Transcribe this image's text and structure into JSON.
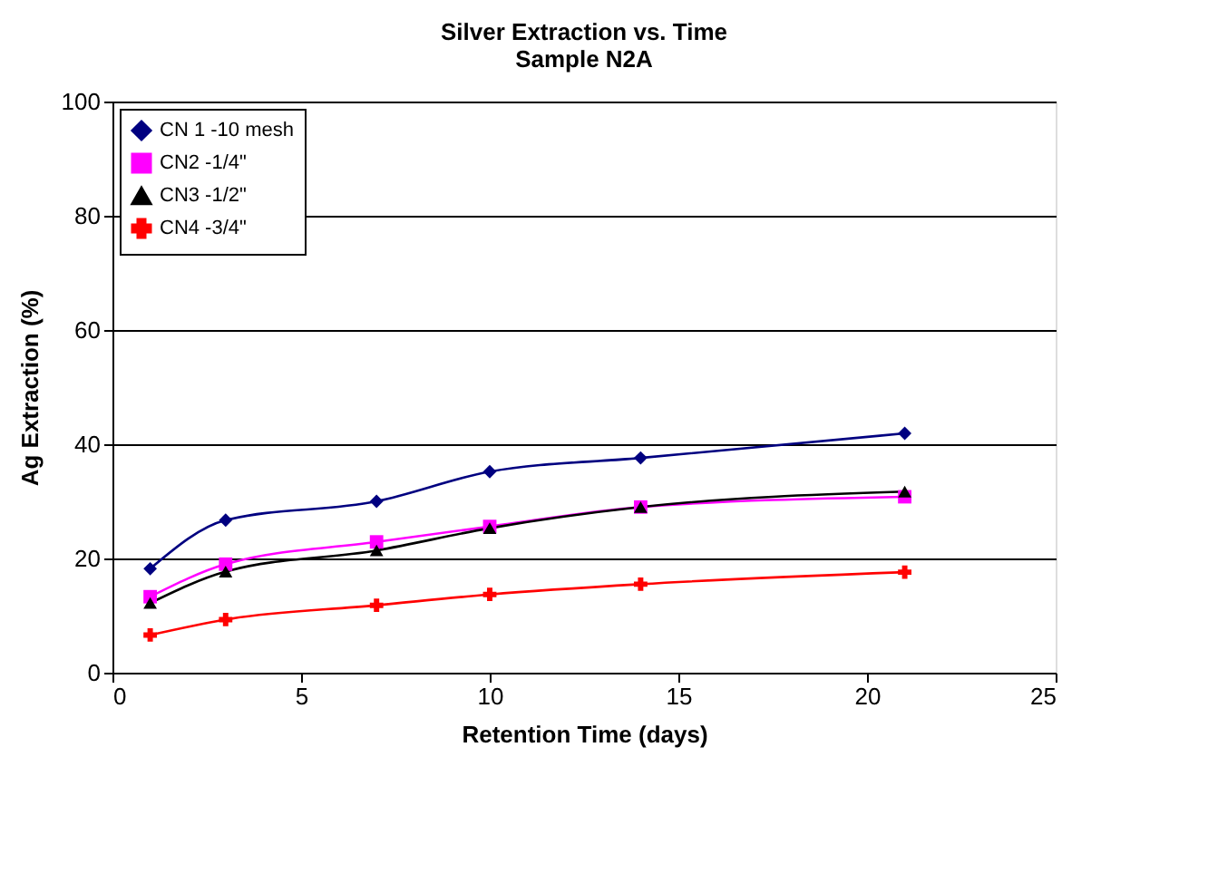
{
  "chart_data": {
    "type": "line",
    "title": "Silver Extraction vs. Time",
    "subtitle": "Sample N2A",
    "xlabel": "Retention Time (days)",
    "ylabel": "Ag Extraction (%)",
    "x": [
      1,
      3,
      7,
      10,
      14,
      21
    ],
    "series": [
      {
        "name": "CN 1 -10 mesh",
        "color": "#000080",
        "marker": "diamond",
        "values": [
          18.2,
          26.7,
          30.0,
          35.2,
          37.6,
          41.9
        ]
      },
      {
        "name": "CN2 -1/4\"",
        "color": "#ff00ff",
        "marker": "square",
        "values": [
          13.3,
          19.0,
          22.9,
          25.6,
          29.0,
          30.8
        ]
      },
      {
        "name": "CN3 -1/2\"",
        "color": "#000000",
        "marker": "triangle",
        "values": [
          12.2,
          17.7,
          21.4,
          25.3,
          29.0,
          31.7
        ]
      },
      {
        "name": "CN4 -3/4\"",
        "color": "#ff0000",
        "marker": "cross",
        "values": [
          6.6,
          9.3,
          11.8,
          13.7,
          15.5,
          17.6
        ]
      }
    ],
    "xlim": [
      0,
      25
    ],
    "xticks": [
      0,
      5,
      10,
      15,
      20,
      25
    ],
    "ylim": [
      0,
      100
    ],
    "yticks": [
      0,
      20,
      40,
      60,
      80,
      100
    ],
    "grid": "y",
    "legend": "top left",
    "line_style": "solid"
  }
}
